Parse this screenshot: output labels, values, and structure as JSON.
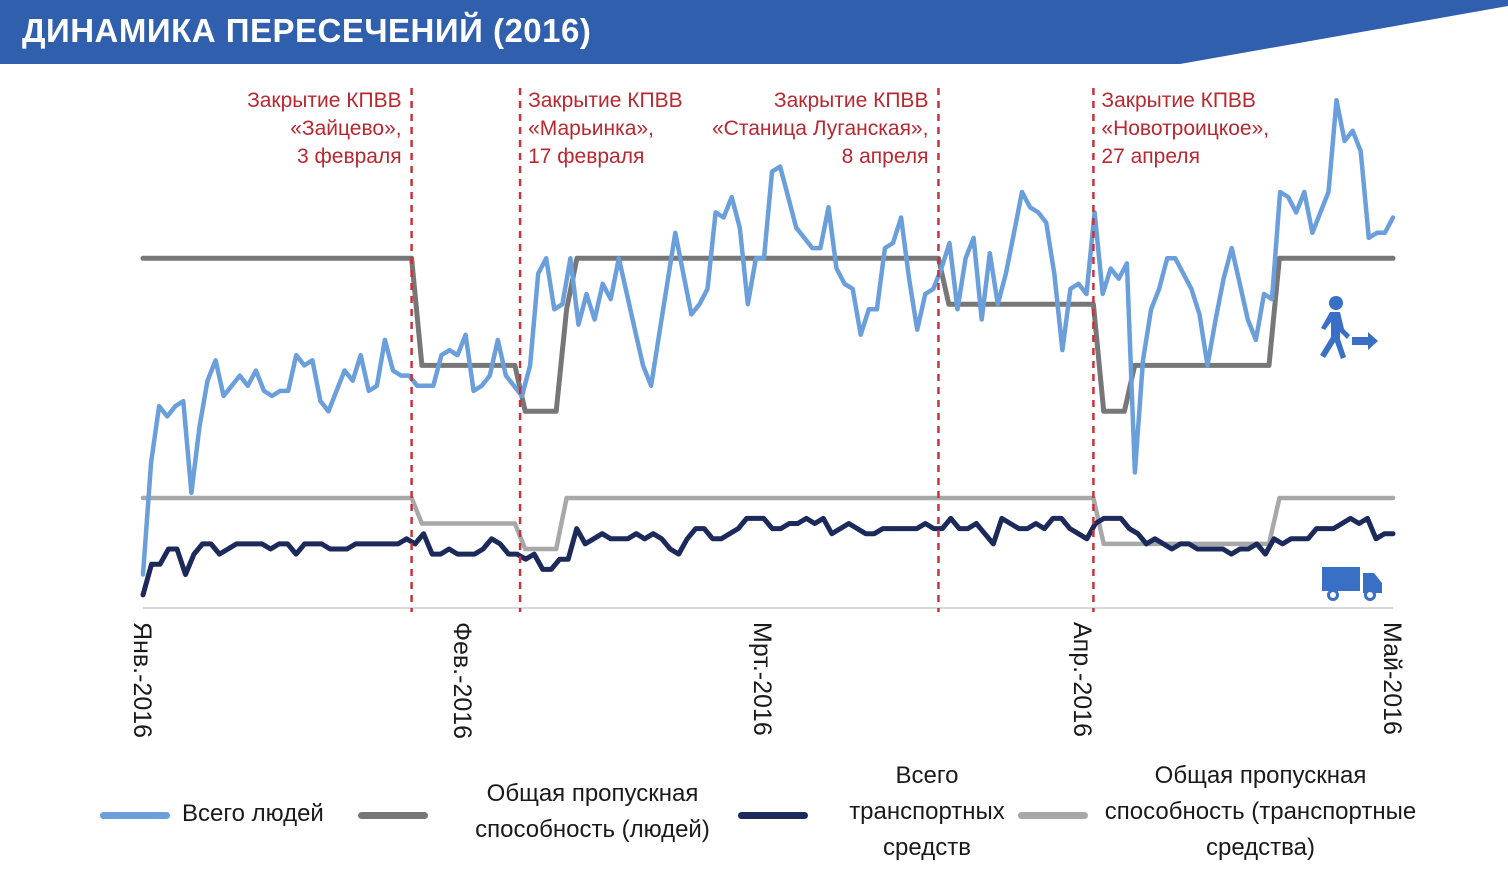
{
  "title": "ДИНАМИКА ПЕРЕСЕЧЕНИЙ (2016)",
  "colors": {
    "banner": "#2f5fad",
    "people": "#6a9fdc",
    "people_capacity": "#777777",
    "vehicles": "#1b2a5a",
    "vehicles_capacity": "#a8a8a8",
    "event_line": "#c8323c",
    "event_text": "#b82830",
    "icon": "#3a6fc6"
  },
  "icons": {
    "people": "person-walking-arrow-icon",
    "vehicles": "truck-icon"
  },
  "legend": [
    {
      "label": "Всего людей",
      "color": "#6a9fdc"
    },
    {
      "label": "Общая пропускная способность (людей)",
      "color": "#777777"
    },
    {
      "label": "Всего транспортных средств",
      "color": "#1b2a5a"
    },
    {
      "label": "Общая пропускная способность (транспортные средства)",
      "color": "#a8a8a8"
    }
  ],
  "chart_data": {
    "type": "line",
    "title": "ДИНАМИКА ПЕРЕСЕЧЕНИЙ (2016)",
    "xlabel": "",
    "ylabel": "",
    "x_axis": "days since 2016-01-01",
    "xlim": [
      0,
      121
    ],
    "ylim": [
      0,
      1
    ],
    "x_ticks": [
      {
        "day": 0,
        "label": "Янв.-2016"
      },
      {
        "day": 31,
        "label": "Фев.-2016"
      },
      {
        "day": 60,
        "label": "Мрт.-2016"
      },
      {
        "day": 91,
        "label": "Апр.-2016"
      },
      {
        "day": 121,
        "label": "Май-2016"
      }
    ],
    "grid": false,
    "legend_position": "bottom",
    "events": [
      {
        "day": 26,
        "lines": [
          "Закрытие КПВВ",
          "«Зайцево»,",
          "3 февраля"
        ],
        "align": "right"
      },
      {
        "day": 36.5,
        "lines": [
          "Закрытие КПВВ",
          "«Марьинка»,",
          "17 февраля"
        ],
        "align": "left"
      },
      {
        "day": 77,
        "lines": [
          "Закрытие КПВВ",
          "«Станица Луганская»,",
          "8 апреля"
        ],
        "align": "right"
      },
      {
        "day": 92,
        "lines": [
          "Закрытие КПВВ",
          "«Новотроицкое»,",
          "27 апреля"
        ],
        "align": "left"
      }
    ],
    "series": [
      {
        "name": "Всего людей",
        "color": "#6a9fdc",
        "values": [
          0.05,
          0.27,
          0.38,
          0.36,
          0.38,
          0.39,
          0.21,
          0.34,
          0.43,
          0.47,
          0.4,
          0.42,
          0.44,
          0.42,
          0.45,
          0.41,
          0.4,
          0.41,
          0.41,
          0.48,
          0.46,
          0.47,
          0.39,
          0.37,
          0.41,
          0.45,
          0.43,
          0.48,
          0.41,
          0.42,
          0.51,
          0.45,
          0.44,
          0.44,
          0.42,
          0.42,
          0.42,
          0.48,
          0.49,
          0.48,
          0.52,
          0.41,
          0.42,
          0.44,
          0.51,
          0.44,
          0.42,
          0.4,
          0.46,
          0.64,
          0.67,
          0.57,
          0.58,
          0.67,
          0.54,
          0.6,
          0.55,
          0.62,
          0.59,
          0.67,
          0.6,
          0.53,
          0.46,
          0.42,
          0.52,
          0.62,
          0.72,
          0.64,
          0.56,
          0.58,
          0.61,
          0.76,
          0.75,
          0.79,
          0.73,
          0.58,
          0.67,
          0.67,
          0.84,
          0.85,
          0.79,
          0.73,
          0.71,
          0.69,
          0.69,
          0.77,
          0.65,
          0.62,
          0.61,
          0.52,
          0.57,
          0.57,
          0.69,
          0.7,
          0.75,
          0.63,
          0.53,
          0.6,
          0.61,
          0.65,
          0.7,
          0.57,
          0.67,
          0.71,
          0.55,
          0.68,
          0.58,
          0.64,
          0.72,
          0.8,
          0.77,
          0.76,
          0.74,
          0.64,
          0.49,
          0.61,
          0.62,
          0.6,
          0.76,
          0.6,
          0.65,
          0.63,
          0.66,
          0.25,
          0.47,
          0.57,
          0.61,
          0.67,
          0.67,
          0.64,
          0.61,
          0.56,
          0.46,
          0.55,
          0.63,
          0.69,
          0.62,
          0.55,
          0.51,
          0.6,
          0.59,
          0.8,
          0.79,
          0.76,
          0.8,
          0.72,
          0.76,
          0.8,
          0.98,
          0.9,
          0.92,
          0.88,
          0.71,
          0.72,
          0.72,
          0.75
        ],
        "x_start": 0,
        "x_end": 121
      },
      {
        "name": "Общая пропускная способность (людей)",
        "color": "#777777",
        "points": [
          [
            0,
            0.67
          ],
          [
            26,
            0.67
          ],
          [
            27,
            0.46
          ],
          [
            36,
            0.46
          ],
          [
            37,
            0.37
          ],
          [
            40,
            0.37
          ],
          [
            41,
            0.57
          ],
          [
            42,
            0.67
          ],
          [
            77,
            0.67
          ],
          [
            78,
            0.58
          ],
          [
            92,
            0.58
          ],
          [
            93,
            0.37
          ],
          [
            95,
            0.37
          ],
          [
            96,
            0.46
          ],
          [
            109,
            0.46
          ],
          [
            110,
            0.67
          ],
          [
            121,
            0.67
          ]
        ]
      },
      {
        "name": "Всего транспортных средств",
        "color": "#1b2a5a",
        "values": [
          0.01,
          0.07,
          0.07,
          0.1,
          0.1,
          0.05,
          0.09,
          0.11,
          0.11,
          0.09,
          0.1,
          0.11,
          0.11,
          0.11,
          0.11,
          0.1,
          0.11,
          0.11,
          0.09,
          0.11,
          0.11,
          0.11,
          0.1,
          0.1,
          0.1,
          0.11,
          0.11,
          0.11,
          0.11,
          0.11,
          0.11,
          0.12,
          0.11,
          0.13,
          0.09,
          0.09,
          0.1,
          0.09,
          0.09,
          0.09,
          0.1,
          0.12,
          0.11,
          0.09,
          0.09,
          0.08,
          0.09,
          0.06,
          0.06,
          0.08,
          0.08,
          0.14,
          0.11,
          0.12,
          0.13,
          0.12,
          0.12,
          0.12,
          0.13,
          0.12,
          0.13,
          0.12,
          0.1,
          0.09,
          0.12,
          0.14,
          0.14,
          0.12,
          0.12,
          0.13,
          0.14,
          0.16,
          0.16,
          0.16,
          0.14,
          0.14,
          0.15,
          0.15,
          0.16,
          0.15,
          0.16,
          0.13,
          0.14,
          0.15,
          0.14,
          0.13,
          0.13,
          0.14,
          0.14,
          0.14,
          0.14,
          0.14,
          0.15,
          0.14,
          0.14,
          0.16,
          0.14,
          0.14,
          0.15,
          0.13,
          0.11,
          0.16,
          0.15,
          0.14,
          0.14,
          0.15,
          0.14,
          0.16,
          0.16,
          0.14,
          0.13,
          0.12,
          0.15,
          0.16,
          0.16,
          0.16,
          0.14,
          0.13,
          0.11,
          0.12,
          0.11,
          0.1,
          0.11,
          0.11,
          0.1,
          0.1,
          0.1,
          0.1,
          0.09,
          0.1,
          0.1,
          0.11,
          0.09,
          0.12,
          0.11,
          0.12,
          0.12,
          0.12,
          0.14,
          0.14,
          0.14,
          0.15,
          0.16,
          0.15,
          0.16,
          0.12,
          0.13,
          0.13
        ],
        "x_start": 0,
        "x_end": 121
      },
      {
        "name": "Общая пропускная способность (транспортные средства)",
        "color": "#a8a8a8",
        "points": [
          [
            0,
            0.2
          ],
          [
            26,
            0.2
          ],
          [
            27,
            0.15
          ],
          [
            36,
            0.15
          ],
          [
            37,
            0.1
          ],
          [
            40,
            0.1
          ],
          [
            41,
            0.2
          ],
          [
            92,
            0.2
          ],
          [
            93,
            0.11
          ],
          [
            109,
            0.11
          ],
          [
            110,
            0.2
          ],
          [
            121,
            0.2
          ]
        ]
      }
    ]
  }
}
